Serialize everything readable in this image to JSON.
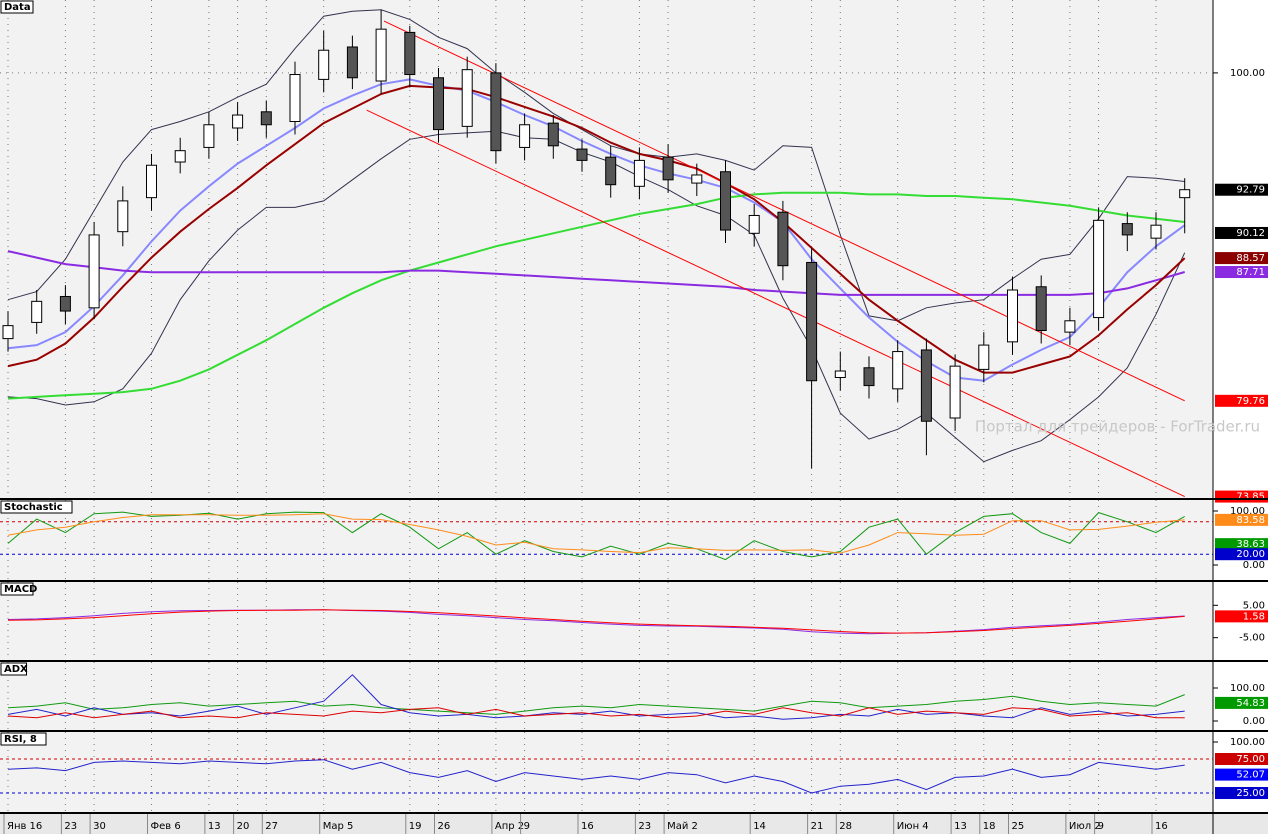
{
  "chart_data": [
    {
      "type": "candlestick",
      "title": "Data",
      "annotation": "Портал для трейдеров - ForTrader.ru",
      "categories": [
        "Янв 16",
        null,
        "23",
        "30",
        null,
        "Фев 6",
        null,
        "13",
        "20",
        "27",
        null,
        "Мар 5",
        null,
        null,
        "19",
        "26",
        null,
        "Апр 2",
        "9",
        null,
        "16",
        null,
        "23",
        "Май 2",
        null,
        null,
        "14",
        null,
        "21",
        "28",
        null,
        "Июн 4",
        null,
        "13",
        "18",
        "25",
        null,
        "Июл 2",
        "9",
        null,
        "16",
        null
      ],
      "open": [
        83.6,
        84.6,
        86.2,
        85.5,
        90.2,
        92.3,
        94.5,
        95.4,
        96.6,
        97.6,
        97.0,
        99.6,
        101.6,
        99.5,
        102.5,
        99.7,
        96.7,
        100.0,
        95.4,
        96.9,
        95.3,
        94.8,
        93.0,
        94.8,
        93.2,
        93.9,
        90.1,
        91.4,
        88.3,
        81.2,
        81.8,
        80.5,
        82.9,
        78.7,
        81.7,
        83.4,
        86.8,
        84.0,
        84.9,
        90.7,
        89.8,
        92.3
      ],
      "high": [
        85.3,
        86.6,
        86.9,
        90.8,
        93.0,
        95.0,
        96.0,
        97.6,
        98.2,
        98.3,
        100.7,
        102.6,
        102.3,
        103.9,
        102.9,
        100.3,
        101.0,
        100.6,
        97.5,
        97.4,
        95.9,
        95.5,
        95.4,
        95.6,
        94.4,
        94.6,
        91.9,
        92.1,
        89.2,
        82.8,
        82.5,
        83.5,
        83.6,
        82.6,
        84.0,
        87.4,
        87.5,
        85.5,
        91.7,
        91.4,
        91.4,
        93.5
      ],
      "low": [
        82.8,
        83.9,
        84.5,
        84.8,
        89.3,
        91.5,
        93.8,
        94.7,
        95.8,
        96.0,
        96.2,
        98.8,
        99.0,
        98.7,
        99.1,
        95.7,
        96.0,
        94.4,
        94.6,
        94.7,
        93.9,
        92.3,
        92.2,
        92.6,
        92.4,
        89.5,
        89.3,
        87.2,
        75.6,
        80.4,
        79.9,
        79.7,
        76.4,
        77.9,
        80.9,
        82.6,
        83.3,
        83.2,
        84.1,
        89.0,
        89.1,
        90.1
      ],
      "close": [
        84.4,
        85.9,
        85.3,
        90.0,
        92.1,
        94.3,
        95.2,
        96.8,
        97.4,
        96.8,
        99.9,
        101.4,
        99.7,
        102.7,
        99.9,
        96.5,
        100.2,
        95.2,
        96.8,
        95.5,
        94.6,
        93.1,
        94.6,
        93.4,
        93.7,
        90.3,
        91.2,
        88.1,
        81.0,
        81.6,
        80.7,
        82.8,
        78.5,
        81.9,
        83.2,
        86.6,
        84.1,
        84.7,
        90.9,
        90.0,
        90.6,
        92.79
      ],
      "up_color": "#ffffff",
      "down_color": "#555555",
      "lines": [
        {
          "color": "#33324f",
          "values": [
            86.0,
            86.5,
            88.5,
            91.5,
            94.5,
            96.5,
            97.0,
            97.6,
            98.5,
            99.3,
            101.5,
            103.5,
            103.8,
            103.9,
            103.3,
            102.2,
            101.5,
            100.0,
            98.8,
            97.5,
            96.5,
            95.5,
            95.0,
            94.8,
            95.0,
            94.6,
            94.0,
            95.5,
            95.4,
            90.0,
            85.0,
            84.7,
            85.5,
            85.8,
            86.0,
            87.3,
            88.5,
            88.8,
            91.0,
            93.6,
            93.5,
            93.3
          ]
        },
        {
          "color": "#33324f",
          "values": [
            80.0,
            79.9,
            79.5,
            79.7,
            80.5,
            82.7,
            86.0,
            88.4,
            90.3,
            91.7,
            91.7,
            92.1,
            93.4,
            94.7,
            95.9,
            96.2,
            96.3,
            96.4,
            96.0,
            95.9,
            95.1,
            94.5,
            93.6,
            92.8,
            91.8,
            91.2,
            90.0,
            86.1,
            83.0,
            79.0,
            77.4,
            78.0,
            79.0,
            77.5,
            76.0,
            76.7,
            77.3,
            78.6,
            80.0,
            81.8,
            85.1,
            88.9
          ]
        },
        {
          "color": "#8888ff",
          "values": [
            83.0,
            83.2,
            84.0,
            85.6,
            87.5,
            89.6,
            91.5,
            93.0,
            94.4,
            95.5,
            96.6,
            97.8,
            98.6,
            99.3,
            99.6,
            99.2,
            98.9,
            98.2,
            97.4,
            96.7,
            95.8,
            95.0,
            94.3,
            93.8,
            93.4,
            92.9,
            92.0,
            90.8,
            88.5,
            86.7,
            84.9,
            83.4,
            82.2,
            81.2,
            81.0,
            82.0,
            82.9,
            83.7,
            85.5,
            87.7,
            89.3,
            90.6
          ]
        },
        {
          "color": "#33dd33",
          "values": [
            79.9,
            80.0,
            80.1,
            80.2,
            80.3,
            80.5,
            81.0,
            81.7,
            82.6,
            83.5,
            84.5,
            85.5,
            86.4,
            87.2,
            87.8,
            88.3,
            88.8,
            89.3,
            89.7,
            90.1,
            90.5,
            90.9,
            91.3,
            91.6,
            91.9,
            92.3,
            92.5,
            92.6,
            92.6,
            92.6,
            92.5,
            92.5,
            92.4,
            92.4,
            92.3,
            92.2,
            92.0,
            91.8,
            91.5,
            91.2,
            91.0,
            90.8
          ]
        },
        {
          "color": "#8a2be2",
          "values": [
            89.0,
            88.6,
            88.2,
            88.0,
            87.8,
            87.7,
            87.7,
            87.7,
            87.7,
            87.7,
            87.7,
            87.7,
            87.7,
            87.7,
            87.8,
            87.8,
            87.7,
            87.6,
            87.5,
            87.4,
            87.3,
            87.2,
            87.1,
            87.0,
            86.9,
            86.8,
            86.6,
            86.5,
            86.4,
            86.3,
            86.3,
            86.3,
            86.3,
            86.3,
            86.3,
            86.3,
            86.3,
            86.3,
            86.4,
            86.7,
            87.2,
            87.71
          ]
        },
        {
          "color": "#990000",
          "values": [
            81.9,
            82.3,
            83.3,
            84.9,
            86.8,
            88.6,
            90.2,
            91.6,
            92.9,
            94.3,
            95.6,
            96.9,
            97.8,
            98.7,
            99.2,
            99.1,
            99.0,
            98.5,
            97.9,
            97.3,
            96.6,
            95.7,
            95.0,
            94.6,
            94.1,
            93.2,
            92.2,
            90.8,
            89.2,
            87.6,
            86.0,
            84.7,
            83.5,
            82.3,
            81.5,
            81.5,
            82.0,
            82.5,
            83.8,
            85.4,
            86.9,
            88.57
          ]
        }
      ],
      "trendlines": [
        {
          "color": "#ff0000",
          "x": [
            13.1,
            41
          ],
          "y": [
            103.2,
            79.76
          ]
        },
        {
          "color": "#ff0000",
          "x": [
            12.5,
            41
          ],
          "y": [
            97.7,
            73.85
          ]
        }
      ],
      "ylim": [
        73.7,
        104.5
      ],
      "yticks": [
        {
          "value": 100,
          "label": "100.00"
        }
      ],
      "grid": true,
      "markers": [
        {
          "value": 92.79,
          "label": "92.79",
          "color": "#000000"
        },
        {
          "value": 90.12,
          "label": "90.12",
          "color": "#000000"
        },
        {
          "value": 88.57,
          "label": "88.57",
          "color": "#8b0000"
        },
        {
          "value": 87.71,
          "label": "87.71",
          "color": "#8a2be2"
        },
        {
          "value": 79.76,
          "label": "79.76",
          "color": "#ff0000"
        },
        {
          "value": 73.85,
          "label": "73.85",
          "color": "#ff0000"
        }
      ]
    },
    {
      "type": "line",
      "title": "Stochastic",
      "ylim": [
        -27.8,
        120.4
      ],
      "yticks": [
        {
          "value": 100,
          "label": "100.00"
        },
        {
          "value": 0,
          "label": "0.00"
        }
      ],
      "levels": [
        {
          "value": 80,
          "color": "#cc0000"
        },
        {
          "value": 20,
          "color": "#0000cc"
        }
      ],
      "series": [
        {
          "color": "#119911",
          "values": [
            40,
            85,
            60,
            95,
            98,
            90,
            92,
            96,
            85,
            95,
            98,
            97,
            60,
            95,
            70,
            30,
            60,
            20,
            45,
            25,
            15,
            35,
            20,
            40,
            30,
            10,
            45,
            25,
            15,
            25,
            70,
            85,
            20,
            60,
            90,
            95,
            60,
            40,
            97,
            80,
            60,
            90
          ]
        },
        {
          "color": "#ff8c1a",
          "values": [
            55,
            65,
            70,
            80,
            88,
            93,
            93,
            93,
            92,
            92,
            93,
            95,
            85,
            84,
            75,
            65,
            53,
            37,
            42,
            30,
            28,
            25,
            23,
            32,
            30,
            27,
            28,
            27,
            28,
            22,
            37,
            60,
            58,
            55,
            57,
            82,
            82,
            65,
            66,
            72,
            79,
            83.58
          ]
        }
      ],
      "markers": [
        {
          "value": 83.58,
          "label": "83.58",
          "color": "#ff8c1a"
        },
        {
          "value": 38.63,
          "label": "38.63",
          "color": "#009900"
        },
        {
          "value": 20,
          "label": "20.00",
          "color": "#0000cc"
        }
      ]
    },
    {
      "type": "line",
      "title": "MACD",
      "ylim": [
        -11.9,
        12.2
      ],
      "yticks": [
        {
          "value": 5,
          "label": "5.00"
        },
        {
          "value": -5,
          "label": "-5.00"
        }
      ],
      "series": [
        {
          "color": "#8a2be2",
          "values": [
            0.6,
            0.8,
            1.2,
            1.8,
            2.5,
            3.0,
            3.3,
            3.4,
            3.5,
            3.5,
            3.6,
            3.6,
            3.4,
            3.2,
            2.8,
            2.2,
            1.8,
            1.2,
            0.6,
            0.2,
            -0.3,
            -0.8,
            -1.2,
            -1.4,
            -1.5,
            -1.8,
            -2.0,
            -2.4,
            -3.2,
            -3.6,
            -3.8,
            -3.6,
            -3.5,
            -3.0,
            -2.5,
            -1.8,
            -1.3,
            -0.9,
            -0.2,
            0.6,
            1.2,
            1.7
          ]
        },
        {
          "color": "#ff0000",
          "values": [
            0.4,
            0.5,
            0.8,
            1.2,
            1.8,
            2.4,
            2.9,
            3.2,
            3.4,
            3.5,
            3.5,
            3.6,
            3.5,
            3.4,
            3.1,
            2.7,
            2.2,
            1.7,
            1.1,
            0.6,
            0.1,
            -0.4,
            -0.8,
            -1.1,
            -1.3,
            -1.5,
            -1.8,
            -2.1,
            -2.6,
            -3.1,
            -3.5,
            -3.6,
            -3.5,
            -3.2,
            -2.8,
            -2.2,
            -1.7,
            -1.2,
            -0.6,
            0.1,
            0.8,
            1.58
          ]
        }
      ],
      "markers": [
        {
          "value": 1.58,
          "label": "1.58",
          "color": "#ff0000"
        }
      ]
    },
    {
      "type": "line",
      "title": "ADX",
      "ylim": [
        -27.3,
        178.8
      ],
      "yticks": [
        {
          "value": 100,
          "label": "100.00"
        },
        {
          "value": 0,
          "label": "0.00"
        }
      ],
      "series": [
        {
          "color": "#119911",
          "values": [
            40,
            45,
            55,
            35,
            40,
            50,
            55,
            45,
            50,
            55,
            60,
            45,
            50,
            40,
            35,
            30,
            25,
            20,
            30,
            40,
            45,
            40,
            50,
            45,
            40,
            35,
            30,
            45,
            60,
            55,
            40,
            45,
            50,
            60,
            65,
            75,
            60,
            50,
            55,
            50,
            45,
            80
          ]
        },
        {
          "color": "#2222cc",
          "values": [
            20,
            35,
            15,
            40,
            20,
            25,
            15,
            30,
            45,
            20,
            40,
            60,
            140,
            50,
            25,
            15,
            20,
            10,
            15,
            25,
            20,
            30,
            15,
            20,
            25,
            10,
            15,
            5,
            10,
            20,
            15,
            35,
            20,
            25,
            15,
            10,
            40,
            20,
            30,
            15,
            20,
            30
          ]
        },
        {
          "color": "#dd0000",
          "values": [
            15,
            10,
            25,
            10,
            20,
            30,
            10,
            15,
            10,
            25,
            20,
            15,
            30,
            25,
            35,
            40,
            20,
            35,
            15,
            20,
            25,
            15,
            20,
            10,
            15,
            30,
            20,
            40,
            25,
            15,
            40,
            20,
            30,
            25,
            20,
            40,
            35,
            15,
            20,
            25,
            10,
            10
          ]
        }
      ],
      "markers": [
        {
          "value": 54.83,
          "label": "54.83",
          "color": "#009900"
        }
      ]
    },
    {
      "type": "line",
      "title": "RSI, 8",
      "ylim": [
        -2.9,
        114.7
      ],
      "yticks": [
        {
          "value": 100,
          "label": "100.00"
        }
      ],
      "levels": [
        {
          "value": 75,
          "color": "#cc0000"
        },
        {
          "value": 25,
          "color": "#0000cc"
        }
      ],
      "series": [
        {
          "color": "#2222cc",
          "values": [
            60,
            62,
            58,
            70,
            72,
            70,
            68,
            72,
            70,
            68,
            72,
            74,
            60,
            70,
            55,
            48,
            58,
            42,
            55,
            50,
            45,
            50,
            45,
            55,
            52,
            40,
            50,
            42,
            25,
            35,
            38,
            45,
            30,
            48,
            50,
            60,
            48,
            52,
            70,
            65,
            60,
            66
          ]
        }
      ],
      "markers": [
        {
          "value": 75,
          "label": "75.00",
          "color": "#cc0000"
        },
        {
          "value": 52.07,
          "label": "52.07",
          "color": "#0000ff"
        },
        {
          "value": 25,
          "label": "25.00",
          "color": "#0000cc"
        }
      ]
    }
  ]
}
